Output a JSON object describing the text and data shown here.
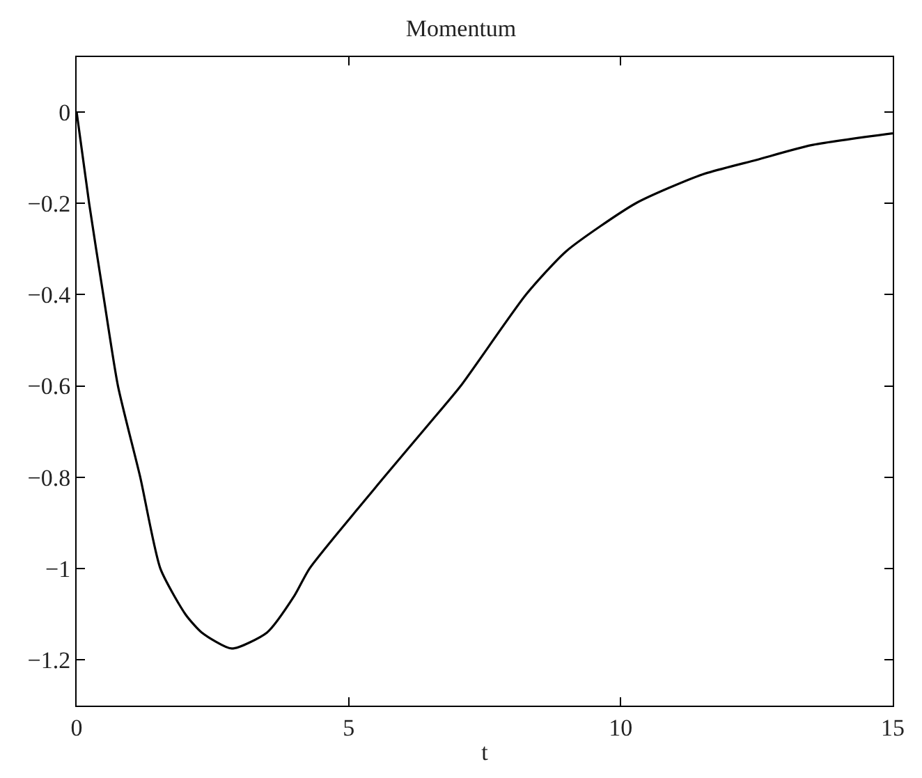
{
  "chart_data": {
    "type": "line",
    "title": "Momentum",
    "xlabel": "t",
    "x": [
      0,
      0.23,
      0.49,
      0.76,
      1.17,
      1.54,
      2.0,
      2.3,
      2.85,
      3.5,
      4.0,
      4.28,
      5.65,
      6.5,
      7.06,
      8.26,
      9.0,
      10.28,
      11.5,
      12.5,
      13.5,
      15
    ],
    "series": [
      {
        "color": "#000000",
        "values": [
          0,
          -0.2,
          -0.4,
          -0.6,
          -0.8,
          -1.0,
          -1.1,
          -1.14,
          -1.175,
          -1.14,
          -1.06,
          -1.0,
          -0.8,
          -0.68,
          -0.6,
          -0.4,
          -0.305,
          -0.2,
          -0.137,
          -0.105,
          -0.073,
          -0.047
        ]
      }
    ],
    "xlim": [
      0,
      15
    ],
    "xticks": [
      0,
      5,
      10,
      15
    ],
    "ylim": [
      -1.3,
      0.12
    ],
    "yticks": [
      0,
      {
        "value": -0.2,
        "label": "−0.2"
      },
      {
        "value": -0.4,
        "label": "−0.4"
      },
      {
        "value": -0.6,
        "label": "−0.6"
      },
      {
        "value": -0.8,
        "label": "−0.8"
      },
      {
        "value": -1,
        "label": "−1"
      },
      {
        "value": -1.2,
        "label": "−1.2"
      }
    ],
    "marker": "none",
    "line_style": "solid"
  }
}
